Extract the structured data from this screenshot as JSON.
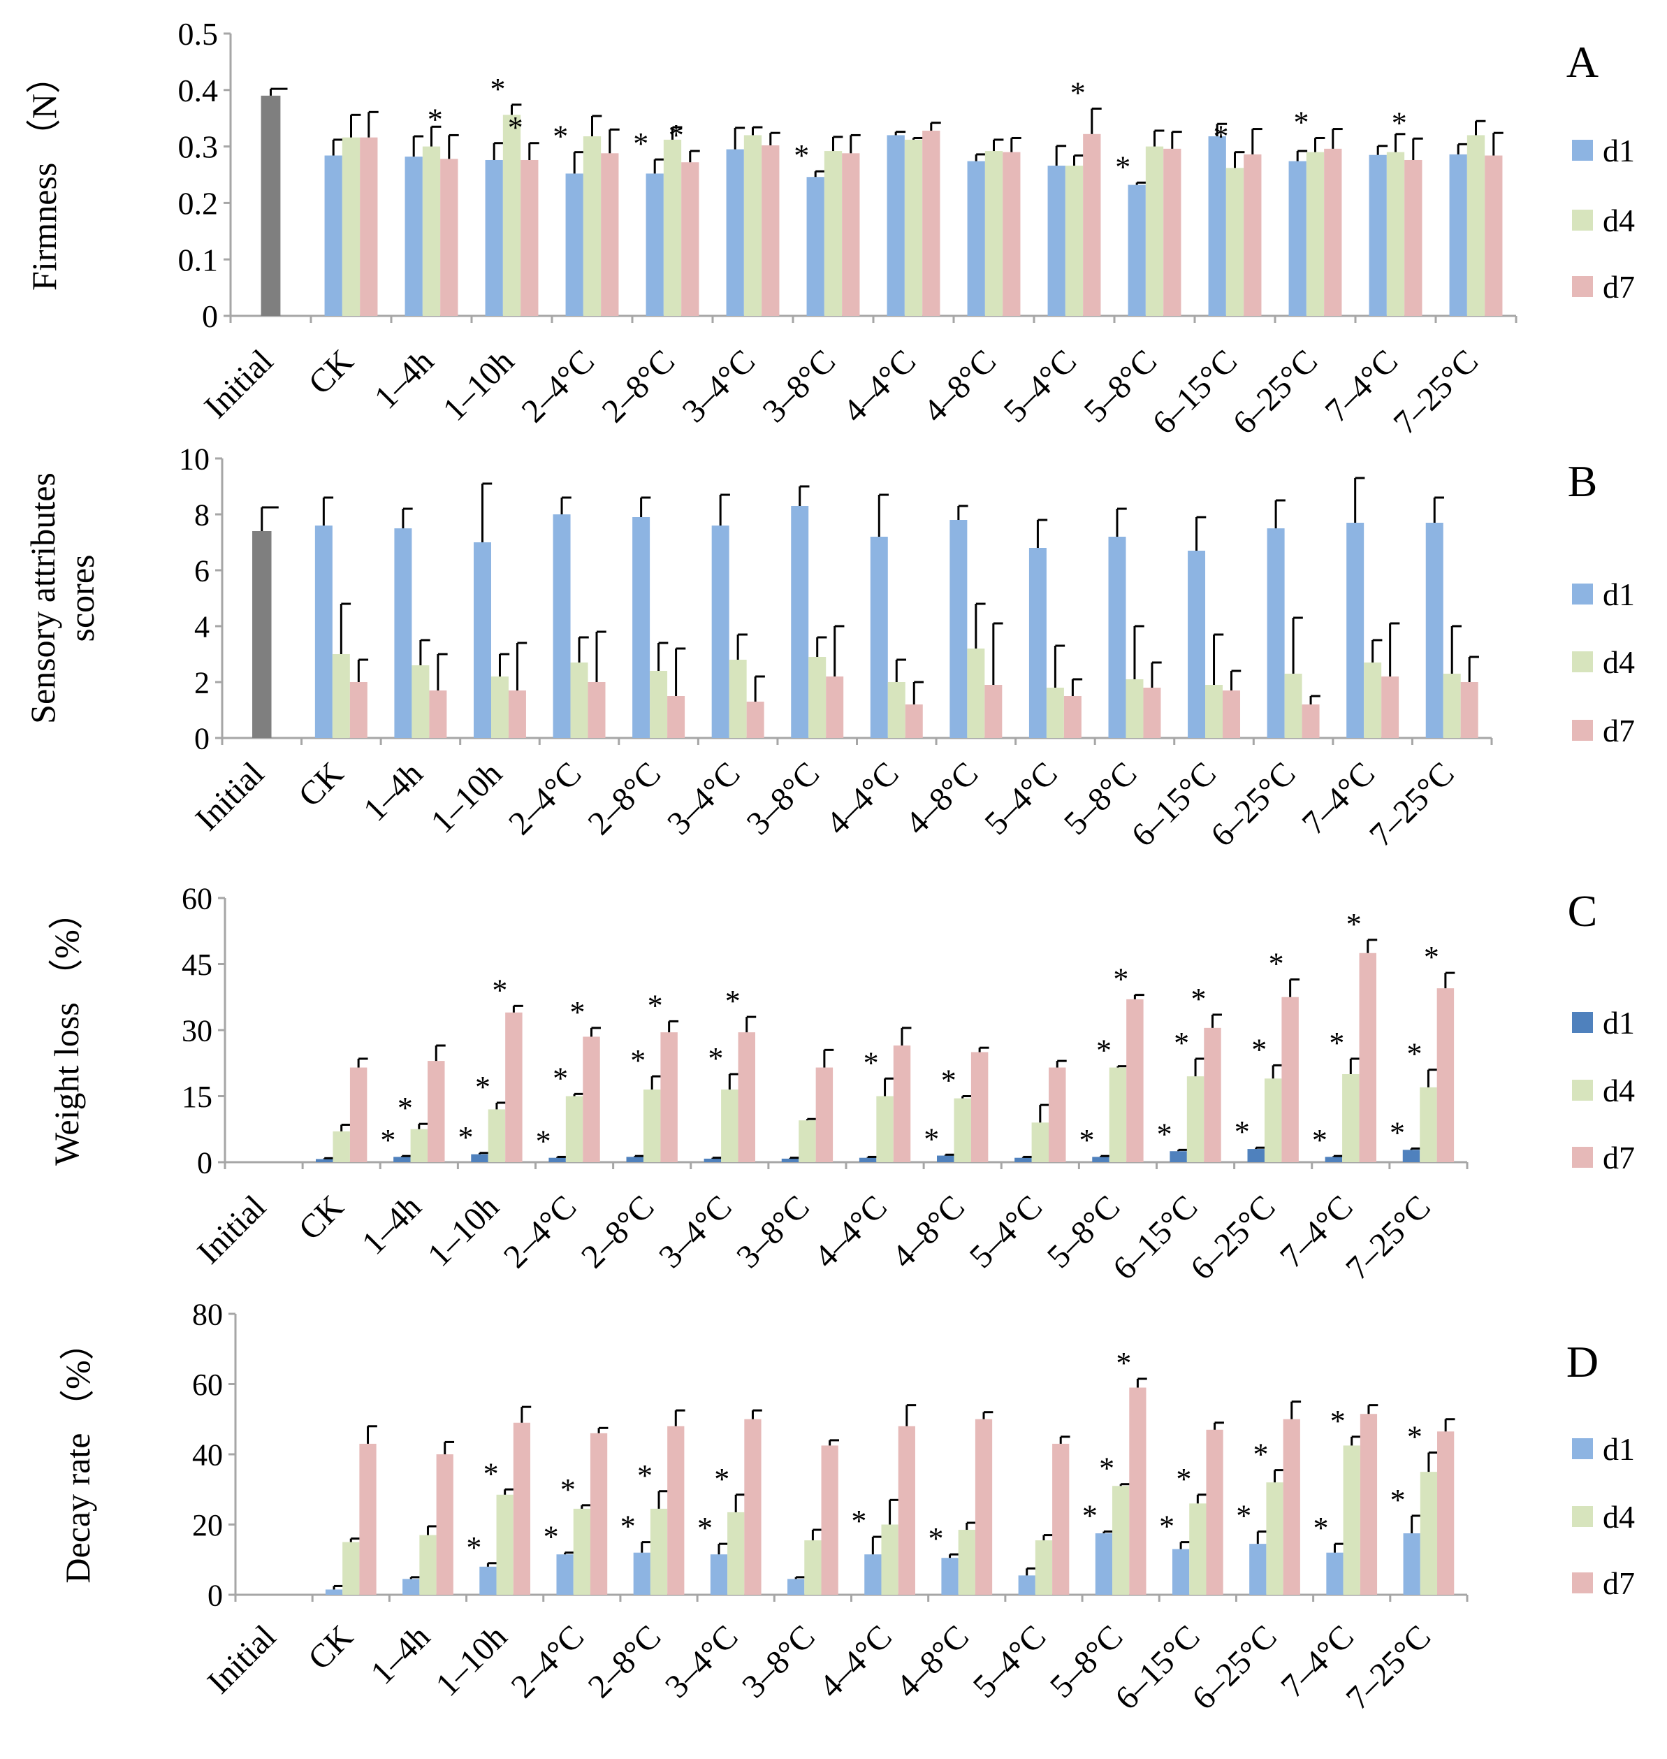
{
  "legend_labels": [
    "d1",
    "d4",
    "d7"
  ],
  "colors": {
    "initial": "#7f7f7f",
    "d1": "#8db4e2",
    "d1_panel_c": "#4f81bd",
    "d4": "#d7e4bd",
    "d7": "#e6b9b8",
    "axis": "#a6a6a6"
  },
  "chart_data": [
    {
      "panel": "A",
      "type": "bar",
      "ylabel": "Firmness （N）",
      "ylim": [
        0,
        0.5
      ],
      "yticks": [
        "0",
        "0.1",
        "0.2",
        "0.3",
        "0.4",
        "0.5"
      ],
      "categories": [
        "Initial",
        "CK",
        "1–4h",
        "1–10h",
        "2–4°C",
        "2–8°C",
        "3–4°C",
        "3–8°C",
        "4–4°C",
        "4–8°C",
        "5–4°C",
        "5–8°C",
        "6–15°C",
        "6–25°C",
        "7–4°C",
        "7–25°C"
      ],
      "initial": {
        "value": 0.39,
        "error": 0.012
      },
      "series": [
        {
          "name": "d1",
          "values": [
            null,
            0.284,
            0.282,
            0.276,
            0.252,
            0.252,
            0.295,
            0.246,
            0.32,
            0.274,
            0.266,
            0.232,
            0.318,
            0.274,
            0.285,
            0.286
          ],
          "errors": [
            null,
            0.028,
            0.036,
            0.03,
            0.038,
            0.025,
            0.038,
            0.01,
            0.006,
            0.012,
            0.035,
            0.004,
            0.022,
            0.018,
            0.016,
            0.018
          ]
        },
        {
          "name": "d4",
          "values": [
            null,
            0.316,
            0.3,
            0.356,
            0.318,
            0.312,
            0.32,
            0.292,
            0.312,
            0.292,
            0.266,
            0.3,
            0.262,
            0.29,
            0.29,
            0.32
          ],
          "errors": [
            null,
            0.04,
            0.035,
            0.018,
            0.036,
            0.022,
            0.014,
            0.025,
            0.003,
            0.02,
            0.018,
            0.028,
            0.028,
            0.025,
            0.032,
            0.025
          ]
        },
        {
          "name": "d7",
          "values": [
            null,
            0.316,
            0.278,
            0.276,
            0.288,
            0.272,
            0.302,
            0.288,
            0.328,
            0.29,
            0.322,
            0.296,
            0.286,
            0.296,
            0.276,
            0.284
          ],
          "errors": [
            null,
            0.045,
            0.042,
            0.03,
            0.042,
            0.02,
            0.022,
            0.032,
            0.014,
            0.025,
            0.045,
            0.03,
            0.045,
            0.035,
            0.038,
            0.04
          ]
        }
      ],
      "asterisks": [
        {
          "cat": 2,
          "s": 2
        },
        {
          "cat": 3,
          "s": 1
        },
        {
          "cat": 3,
          "s": 2
        },
        {
          "cat": 4,
          "s": 0
        },
        {
          "cat": 5,
          "s": 0
        },
        {
          "cat": 5,
          "s": 2
        },
        {
          "cat": 7,
          "s": 0
        },
        {
          "cat": 10,
          "s": 2
        },
        {
          "cat": 11,
          "s": 0
        },
        {
          "cat": 12,
          "s": 1
        },
        {
          "cat": 13,
          "s": 1
        },
        {
          "cat": 14,
          "s": 2
        }
      ]
    },
    {
      "panel": "B",
      "type": "bar",
      "ylabel": "Sensory attributes\nscores",
      "ylim": [
        0,
        10
      ],
      "yticks": [
        "0",
        "2",
        "4",
        "6",
        "8",
        "10"
      ],
      "categories": [
        "Initial",
        "CK",
        "1–4h",
        "1–10h",
        "2–4°C",
        "2–8°C",
        "3–4°C",
        "3–8°C",
        "4–4°C",
        "4–8°C",
        "5–4°C",
        "5–8°C",
        "6–15°C",
        "6–25°C",
        "7–4°C",
        "7–25°C"
      ],
      "initial": {
        "value": 7.4,
        "error": 0.85
      },
      "series": [
        {
          "name": "d1",
          "values": [
            null,
            7.6,
            7.5,
            7.0,
            8.0,
            7.9,
            7.6,
            8.3,
            7.2,
            7.8,
            6.8,
            7.2,
            6.7,
            7.5,
            7.7,
            7.7
          ],
          "errors": [
            null,
            1.0,
            0.7,
            2.1,
            0.6,
            0.7,
            1.1,
            0.7,
            1.5,
            0.5,
            1.0,
            1.0,
            1.2,
            1.0,
            1.6,
            0.9
          ]
        },
        {
          "name": "d4",
          "values": [
            null,
            3.0,
            2.6,
            2.2,
            2.7,
            2.4,
            2.8,
            2.9,
            2.0,
            3.2,
            1.8,
            2.1,
            1.9,
            2.3,
            2.7,
            2.3
          ],
          "errors": [
            null,
            1.8,
            0.9,
            0.8,
            0.9,
            1.0,
            0.9,
            0.7,
            0.8,
            1.6,
            1.5,
            1.9,
            1.8,
            2.0,
            0.8,
            1.7
          ]
        },
        {
          "name": "d7",
          "values": [
            null,
            2.0,
            1.7,
            1.7,
            2.0,
            1.5,
            1.3,
            2.2,
            1.2,
            1.9,
            1.5,
            1.8,
            1.7,
            1.2,
            2.2,
            2.0
          ],
          "errors": [
            null,
            0.8,
            1.3,
            1.7,
            1.8,
            1.7,
            0.9,
            1.8,
            0.8,
            2.2,
            0.6,
            0.9,
            0.7,
            0.3,
            1.9,
            0.9
          ]
        }
      ],
      "asterisks": []
    },
    {
      "panel": "C",
      "type": "bar",
      "ylabel": "Weight loss （%）",
      "ylim": [
        0,
        60
      ],
      "yticks": [
        "0",
        "15",
        "30",
        "45",
        "60"
      ],
      "categories": [
        "Initial",
        "CK",
        "1–4h",
        "1–10h",
        "2–4°C",
        "2–8°C",
        "3–4°C",
        "3–8°C",
        "4–4°C",
        "4–8°C",
        "5–4°C",
        "5–8°C",
        "6–15°C",
        "6–25°C",
        "7–4°C",
        "7–25°C"
      ],
      "initial": null,
      "series": [
        {
          "name": "d1",
          "values": [
            null,
            0.7,
            1.2,
            1.8,
            1.0,
            1.2,
            0.8,
            0.8,
            1.0,
            1.5,
            1.0,
            1.2,
            2.5,
            3.0,
            1.2,
            2.8
          ],
          "errors": [
            null,
            0.2,
            0.2,
            0.3,
            0.2,
            0.2,
            0.2,
            0.2,
            0.2,
            0.2,
            0.2,
            0.2,
            0.3,
            0.3,
            0.2,
            0.3
          ]
        },
        {
          "name": "d4",
          "values": [
            null,
            7.0,
            7.5,
            12.0,
            15.0,
            16.5,
            16.5,
            9.5,
            15.0,
            14.5,
            9.0,
            21.5,
            19.5,
            19.0,
            20.0,
            17.0
          ],
          "errors": [
            null,
            1.5,
            1.2,
            1.5,
            0.5,
            3.0,
            3.5,
            0.3,
            4.0,
            0.5,
            4.0,
            0.3,
            4.0,
            3.0,
            3.5,
            4.0
          ]
        },
        {
          "name": "d7",
          "values": [
            null,
            21.5,
            23.0,
            34.0,
            28.5,
            29.5,
            29.5,
            21.5,
            26.5,
            25.0,
            21.5,
            37.0,
            30.5,
            37.5,
            47.5,
            39.5
          ],
          "errors": [
            null,
            2.0,
            3.5,
            1.5,
            2.0,
            2.5,
            3.5,
            4.0,
            4.0,
            1.0,
            1.5,
            1.0,
            3.0,
            4.0,
            3.0,
            3.5
          ]
        }
      ],
      "asterisks": [
        {
          "cat": 2,
          "s": 1
        },
        {
          "cat": 3,
          "s": 1
        },
        {
          "cat": 3,
          "s": 2
        },
        {
          "cat": 4,
          "s": 1
        },
        {
          "cat": 4,
          "s": 2
        },
        {
          "cat": 5,
          "s": 1
        },
        {
          "cat": 5,
          "s": 2
        },
        {
          "cat": 6,
          "s": 1
        },
        {
          "cat": 6,
          "s": 2
        },
        {
          "cat": 8,
          "s": 1
        },
        {
          "cat": 9,
          "s": 1
        },
        {
          "cat": 11,
          "s": 1
        },
        {
          "cat": 11,
          "s": 2
        },
        {
          "cat": 12,
          "s": 1
        },
        {
          "cat": 12,
          "s": 2
        },
        {
          "cat": 13,
          "s": 1
        },
        {
          "cat": 13,
          "s": 2
        },
        {
          "cat": 14,
          "s": 1
        },
        {
          "cat": 14,
          "s": 2
        },
        {
          "cat": 15,
          "s": 1
        },
        {
          "cat": 15,
          "s": 2
        },
        {
          "cat": 2,
          "s": 0
        },
        {
          "cat": 3,
          "s": 0
        },
        {
          "cat": 4,
          "s": 0
        },
        {
          "cat": 9,
          "s": 0
        },
        {
          "cat": 11,
          "s": 0
        },
        {
          "cat": 12,
          "s": 0
        },
        {
          "cat": 13,
          "s": 0
        },
        {
          "cat": 14,
          "s": 0
        },
        {
          "cat": 15,
          "s": 0
        }
      ]
    },
    {
      "panel": "D",
      "type": "bar",
      "ylabel": "Decay rate （%）",
      "ylim": [
        0,
        80
      ],
      "yticks": [
        "0",
        "20",
        "40",
        "60",
        "80"
      ],
      "categories": [
        "Initial",
        "CK",
        "1–4h",
        "1–10h",
        "2–4°C",
        "2–8°C",
        "3–4°C",
        "3–8°C",
        "4–4°C",
        "4–8°C",
        "5–4°C",
        "5–8°C",
        "6–15°C",
        "6–25°C",
        "7–4°C",
        "7–25°C"
      ],
      "initial": null,
      "series": [
        {
          "name": "d1",
          "values": [
            null,
            1.5,
            4.5,
            8.0,
            11.5,
            12.0,
            11.5,
            4.5,
            11.5,
            10.5,
            5.5,
            17.5,
            13.0,
            14.5,
            12.0,
            17.5
          ],
          "errors": [
            null,
            1.0,
            0.5,
            1.0,
            0.5,
            3.0,
            3.0,
            0.5,
            5.0,
            1.0,
            2.0,
            0.5,
            2.0,
            3.5,
            2.5,
            5.0
          ]
        },
        {
          "name": "d4",
          "values": [
            null,
            15.0,
            17.0,
            28.5,
            24.5,
            24.5,
            23.5,
            15.5,
            20.0,
            18.5,
            15.5,
            31.0,
            26.0,
            32.0,
            42.5,
            35.0
          ],
          "errors": [
            null,
            1.0,
            2.5,
            1.5,
            1.0,
            5.0,
            5.0,
            3.0,
            7.0,
            2.0,
            1.5,
            0.5,
            2.5,
            3.5,
            2.5,
            5.5
          ]
        },
        {
          "name": "d7",
          "values": [
            null,
            43.0,
            40.0,
            49.0,
            46.0,
            48.0,
            50.0,
            42.5,
            48.0,
            50.0,
            43.0,
            59.0,
            47.0,
            50.0,
            51.5,
            46.5
          ],
          "errors": [
            null,
            5.0,
            3.5,
            4.5,
            1.5,
            4.5,
            2.5,
            1.5,
            6.0,
            2.0,
            2.0,
            2.5,
            2.0,
            5.0,
            2.5,
            3.5
          ]
        }
      ],
      "asterisks": [
        {
          "cat": 3,
          "s": 0
        },
        {
          "cat": 3,
          "s": 1
        },
        {
          "cat": 4,
          "s": 0
        },
        {
          "cat": 4,
          "s": 1
        },
        {
          "cat": 5,
          "s": 0
        },
        {
          "cat": 5,
          "s": 1
        },
        {
          "cat": 6,
          "s": 0
        },
        {
          "cat": 6,
          "s": 1
        },
        {
          "cat": 8,
          "s": 0
        },
        {
          "cat": 9,
          "s": 0
        },
        {
          "cat": 11,
          "s": 0
        },
        {
          "cat": 11,
          "s": 1
        },
        {
          "cat": 11,
          "s": 2
        },
        {
          "cat": 12,
          "s": 0
        },
        {
          "cat": 12,
          "s": 1
        },
        {
          "cat": 13,
          "s": 0
        },
        {
          "cat": 13,
          "s": 1
        },
        {
          "cat": 14,
          "s": 0
        },
        {
          "cat": 14,
          "s": 1
        },
        {
          "cat": 15,
          "s": 0
        },
        {
          "cat": 15,
          "s": 1
        }
      ]
    }
  ]
}
